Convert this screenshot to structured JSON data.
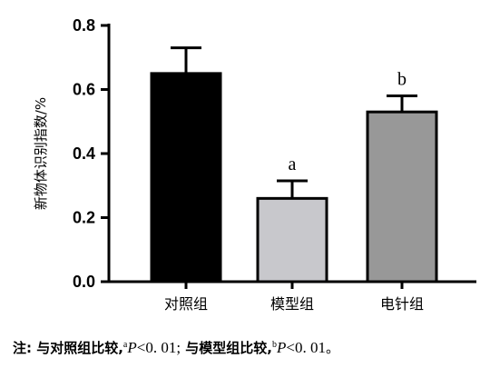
{
  "chart_data": {
    "type": "bar",
    "categories": [
      "对照组",
      "模型组",
      "电针组"
    ],
    "values": [
      0.65,
      0.26,
      0.53
    ],
    "errors": [
      0.08,
      0.055,
      0.05
    ],
    "significance": [
      "",
      "a",
      "b"
    ],
    "bar_colors": [
      "#000000",
      "#c8c8cc",
      "#989898"
    ],
    "ylabel": "新物体识别指数/%",
    "ylim": [
      0,
      0.8
    ],
    "yticks": [
      "0.0",
      "0.2",
      "0.4",
      "0.6",
      "0.8"
    ],
    "ytick_values": [
      0,
      0.2,
      0.4,
      0.6,
      0.8
    ],
    "grid": false
  },
  "caption": {
    "prefix": "注: 与对照组比较,",
    "sup_a": "a",
    "p_a": "P",
    "lt_a": "<0. 01;",
    "middle": " 与模型组比较,",
    "sup_b": "b",
    "p_b": "P",
    "lt_b": "<0. 01",
    "end": "。"
  }
}
